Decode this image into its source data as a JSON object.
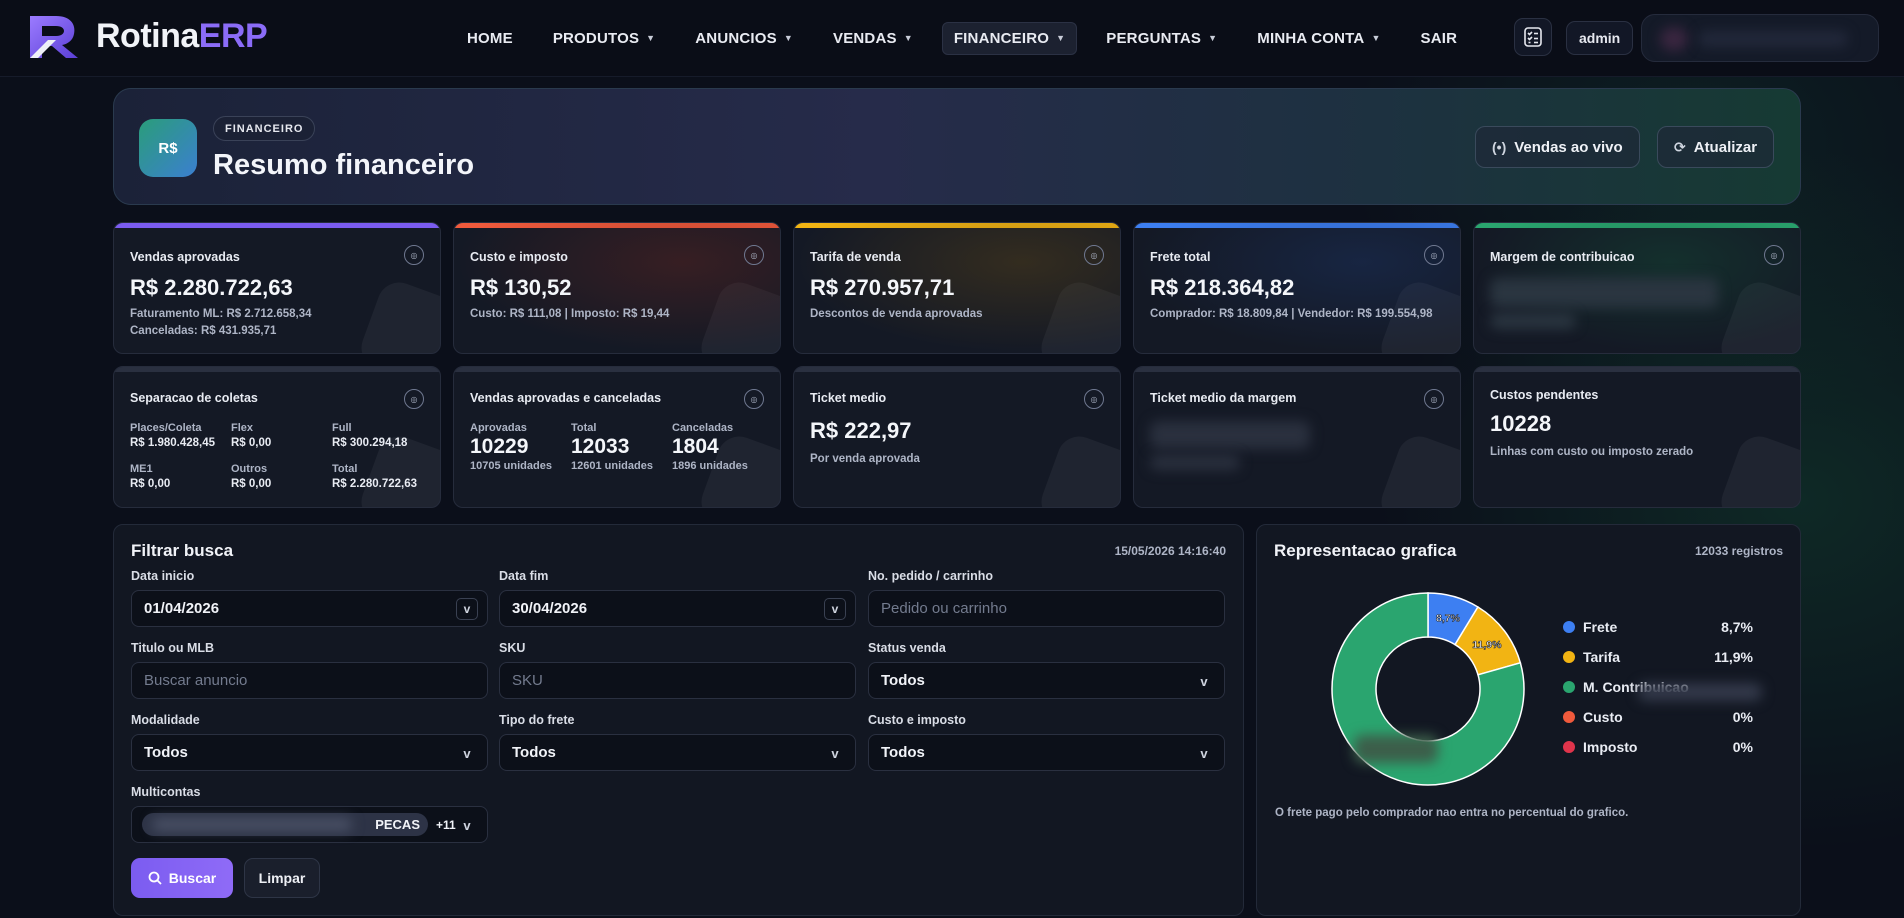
{
  "brand": {
    "name_a": "Rotina",
    "name_b": "ERP"
  },
  "nav": {
    "items": [
      {
        "label": "HOME",
        "caret": false,
        "active": false
      },
      {
        "label": "PRODUTOS",
        "caret": true,
        "active": false
      },
      {
        "label": "ANUNCIOS",
        "caret": true,
        "active": false
      },
      {
        "label": "VENDAS",
        "caret": true,
        "active": false
      },
      {
        "label": "FINANCEIRO",
        "caret": true,
        "active": true
      },
      {
        "label": "PERGUNTAS",
        "caret": true,
        "active": false
      },
      {
        "label": "MINHA CONTA",
        "caret": true,
        "active": false
      },
      {
        "label": "SAIR",
        "caret": false,
        "active": false
      }
    ],
    "checklist_icon": "checklist-icon",
    "user": "admin"
  },
  "hero": {
    "badge": "R$",
    "section": "FINANCEIRO",
    "title": "Resumo financeiro",
    "live_button": "Vendas ao vivo",
    "refresh_button": "Atualizar"
  },
  "kpis_row1": [
    {
      "title": "Vendas aprovadas",
      "value": "R$ 2.280.722,63",
      "sub1": "Faturamento ML: R$ 2.712.658,34",
      "sub2": "Canceladas: R$ 431.935,71",
      "color": "#7b5cf0"
    },
    {
      "title": "Custo e imposto",
      "value": "R$ 130,52",
      "sub1": "Custo: R$ 111,08 | Imposto: R$ 19,44",
      "sub2": "",
      "color": "#f05a3c"
    },
    {
      "title": "Tarifa de venda",
      "value": "R$ 270.957,71",
      "sub1": "Descontos de venda aprovadas",
      "sub2": "",
      "color": "#f2b413"
    },
    {
      "title": "Frete total",
      "value": "R$ 218.364,82",
      "sub1": "Comprador: R$ 18.809,84 | Vendedor: R$ 199.554,98",
      "sub2": "",
      "color": "#3d7ff2"
    },
    {
      "title": "Margem de contribuicao",
      "value": "",
      "sub1": "",
      "sub2": "",
      "color": "#2aa56f"
    }
  ],
  "coletas": {
    "title": "Separacao de coletas",
    "cells": [
      {
        "label": "Places/Coleta",
        "value": "R$ 1.980.428,45"
      },
      {
        "label": "Flex",
        "value": "R$ 0,00"
      },
      {
        "label": "Full",
        "value": "R$ 300.294,18"
      },
      {
        "label": "ME1",
        "value": "R$ 0,00"
      },
      {
        "label": "Outros",
        "value": "R$ 0,00"
      },
      {
        "label": "Total",
        "value": "R$ 2.280.722,63"
      }
    ]
  },
  "aprovadas_canceladas": {
    "title": "Vendas aprovadas e canceladas",
    "cells": [
      {
        "label": "Aprovadas",
        "value": "10229",
        "units": "10705 unidades"
      },
      {
        "label": "Total",
        "value": "12033",
        "units": "12601 unidades"
      },
      {
        "label": "Canceladas",
        "value": "1804",
        "units": "1896 unidades"
      }
    ]
  },
  "ticket": {
    "title": "Ticket medio",
    "value": "R$ 222,97",
    "sub": "Por venda aprovada"
  },
  "ticket_margem": {
    "title": "Ticket medio da margem"
  },
  "custos_pendentes": {
    "title": "Custos pendentes",
    "value": "10228",
    "sub": "Linhas com custo ou imposto zerado"
  },
  "filter": {
    "title": "Filtrar busca",
    "timestamp": "15/05/2026 14:16:40",
    "data_inicio_label": "Data inicio",
    "data_inicio": "01/04/2026",
    "data_fim_label": "Data fim",
    "data_fim": "30/04/2026",
    "pedido_label": "No. pedido / carrinho",
    "pedido_placeholder": "Pedido ou carrinho",
    "titulo_label": "Titulo ou MLB",
    "titulo_placeholder": "Buscar anuncio",
    "sku_label": "SKU",
    "sku_placeholder": "SKU",
    "status_label": "Status venda",
    "status_value": "Todos",
    "modalidade_label": "Modalidade",
    "modalidade_value": "Todos",
    "frete_label": "Tipo do frete",
    "frete_value": "Todos",
    "custo_label": "Custo e imposto",
    "custo_value": "Todos",
    "multicontas_label": "Multicontas",
    "multicontas_chip_visible": "PECAS",
    "multicontas_more": "+11",
    "search_button": "Buscar",
    "clear_button": "Limpar",
    "caret": "v"
  },
  "chart_data": {
    "type": "pie",
    "title": "Representacao grafica",
    "records": "12033 registros",
    "categories": [
      "Frete",
      "Tarifa",
      "M. Contribuicao",
      "Custo",
      "Imposto"
    ],
    "values": [
      8.7,
      11.9,
      79.4,
      0,
      0
    ],
    "labels": [
      "8,7%",
      "11,9%",
      "",
      "0%",
      "0%"
    ],
    "colors": [
      "#3d7ff2",
      "#f2b413",
      "#2aa56f",
      "#f05a3c",
      "#e0344b"
    ],
    "note": "O frete pago pelo comprador nao entra no percentual do grafico."
  }
}
